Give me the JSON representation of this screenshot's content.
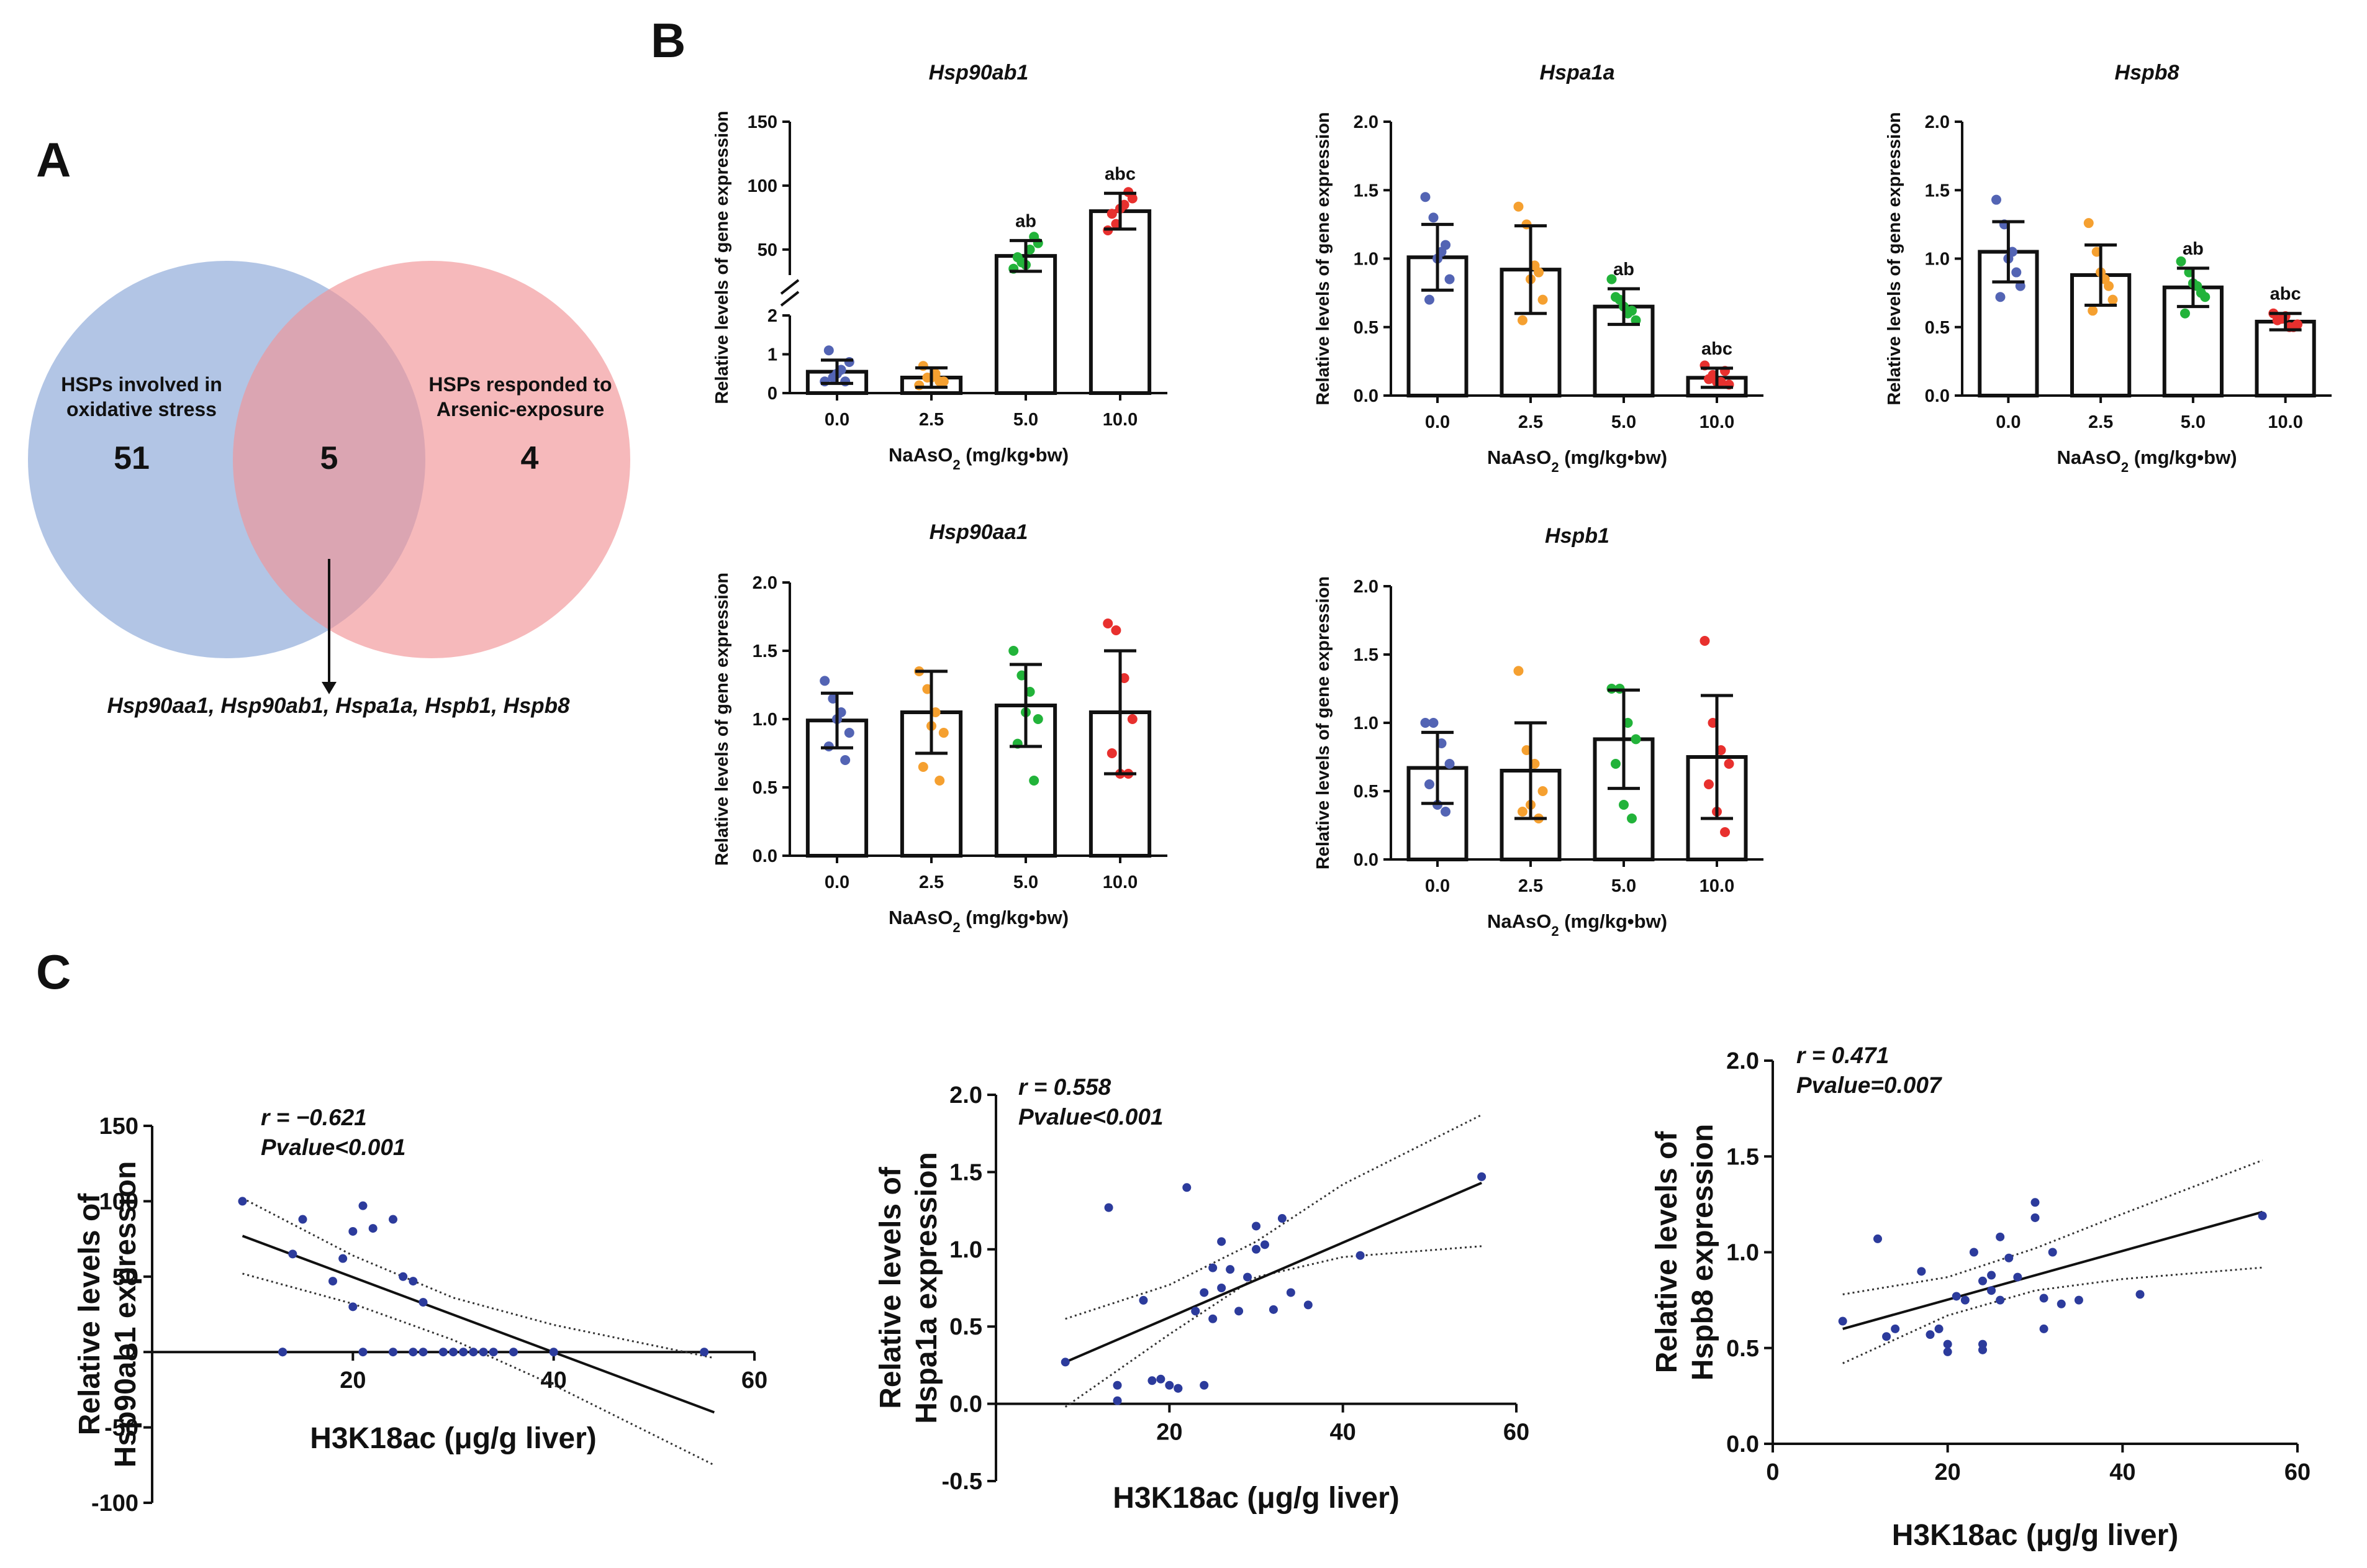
{
  "panel_labels": {
    "a": "A",
    "b": "B",
    "c": "C"
  },
  "colors": {
    "blue": "#5364b4",
    "orange": "#f5a030",
    "green": "#22b33a",
    "red": "#e8302e",
    "venn_left": "#9fb6df",
    "venn_right": "#f4a0a4",
    "dot_c": "#2c3b9c"
  },
  "venn": {
    "left_label_1": "HSPs involved in",
    "left_label_2": "oxidative stress",
    "right_label_1": "HSPs responded to",
    "right_label_2": "Arsenic-exposure",
    "left_count": "51",
    "overlap_count": "5",
    "right_count": "4",
    "genes": "Hsp90aa1, Hsp90ab1, Hspa1a, Hspb1, Hspb8"
  },
  "chart_data": [
    {
      "type": "bar",
      "id": "b1",
      "title": "Hsp90ab1",
      "categories": [
        "0.0",
        "2.5",
        "5.0",
        "10.0"
      ],
      "values": [
        0.55,
        0.4,
        45,
        80
      ],
      "sd": [
        0.3,
        0.25,
        12,
        14
      ],
      "sig": [
        "",
        "",
        "ab",
        "abc"
      ],
      "points": [
        [
          0.3,
          0.4,
          0.6,
          0.8,
          1.1,
          0.5,
          0.3
        ],
        [
          0.2,
          0.4,
          0.5,
          0.3,
          0.7,
          0.4,
          0.3
        ],
        [
          35,
          40,
          50,
          55,
          44,
          38,
          60
        ],
        [
          65,
          70,
          85,
          90,
          78,
          82,
          95
        ]
      ],
      "broken_axis": true,
      "lower_range": [
        0,
        2
      ],
      "lower_ticks": [
        "0",
        "1",
        "2"
      ],
      "upper_range": [
        30,
        150
      ],
      "upper_ticks": [
        "50",
        "100",
        "150"
      ],
      "xlabel": "NaAsO2 (mg/kg•bw)",
      "ylabel": "Relative levels of gene expression"
    },
    {
      "type": "bar",
      "id": "b2",
      "title": "Hspa1a",
      "categories": [
        "0.0",
        "2.5",
        "5.0",
        "10.0"
      ],
      "values": [
        1.01,
        0.92,
        0.65,
        0.13
      ],
      "sd": [
        0.24,
        0.32,
        0.13,
        0.07
      ],
      "sig": [
        "",
        "",
        "ab",
        "abc"
      ],
      "points": [
        [
          1.45,
          1.3,
          1.05,
          0.85,
          0.7,
          1.0,
          1.1
        ],
        [
          1.38,
          1.25,
          0.95,
          0.7,
          0.55,
          0.85,
          0.9
        ],
        [
          0.85,
          0.7,
          0.6,
          0.55,
          0.72,
          0.65,
          0.62
        ],
        [
          0.22,
          0.15,
          0.1,
          0.08,
          0.12,
          0.1,
          0.18
        ]
      ],
      "ylim": [
        0,
        2
      ],
      "yticks": [
        "0.0",
        "0.5",
        "1.0",
        "1.5",
        "2.0"
      ],
      "xlabel": "NaAsO2 (mg/kg•bw)",
      "ylabel": "Relative levels of gene expression"
    },
    {
      "type": "bar",
      "id": "b3",
      "title": "Hspb8",
      "categories": [
        "0.0",
        "2.5",
        "5.0",
        "10.0"
      ],
      "values": [
        1.05,
        0.88,
        0.79,
        0.54
      ],
      "sd": [
        0.22,
        0.22,
        0.14,
        0.06
      ],
      "sig": [
        "",
        "",
        "ab",
        "abc"
      ],
      "points": [
        [
          1.43,
          1.25,
          1.05,
          0.8,
          0.72,
          1.0,
          0.9
        ],
        [
          1.26,
          1.05,
          0.85,
          0.7,
          0.62,
          0.9,
          0.8
        ],
        [
          0.98,
          0.9,
          0.8,
          0.72,
          0.6,
          0.82,
          0.75
        ],
        [
          0.6,
          0.56,
          0.5,
          0.52,
          0.55,
          0.58,
          0.5
        ]
      ],
      "ylim": [
        0,
        2
      ],
      "yticks": [
        "0.0",
        "0.5",
        "1.0",
        "1.5",
        "2.0"
      ],
      "xlabel": "NaAsO2 (mg/kg•bw)",
      "ylabel": "Relative levels of gene expression"
    },
    {
      "type": "bar",
      "id": "b4",
      "title": "Hsp90aa1",
      "categories": [
        "0.0",
        "2.5",
        "5.0",
        "10.0"
      ],
      "values": [
        0.99,
        1.05,
        1.1,
        1.05
      ],
      "sd": [
        0.2,
        0.3,
        0.3,
        0.45
      ],
      "sig": [
        "",
        "",
        "",
        ""
      ],
      "points": [
        [
          1.28,
          1.15,
          1.05,
          0.9,
          0.8,
          1.0,
          0.7
        ],
        [
          1.35,
          1.22,
          1.05,
          0.9,
          0.65,
          0.95,
          0.55
        ],
        [
          1.5,
          1.32,
          1.2,
          1.0,
          0.82,
          1.05,
          0.55
        ],
        [
          1.7,
          1.65,
          1.3,
          1.0,
          0.75,
          0.6,
          0.6
        ]
      ],
      "ylim": [
        0,
        2
      ],
      "yticks": [
        "0.0",
        "0.5",
        "1.0",
        "1.5",
        "2.0"
      ],
      "xlabel": "NaAsO2 (mg/kg•bw)",
      "ylabel": "Relative levels of gene expression"
    },
    {
      "type": "bar",
      "id": "b5",
      "title": "Hspb1",
      "categories": [
        "0.0",
        "2.5",
        "5.0",
        "10.0"
      ],
      "values": [
        0.67,
        0.65,
        0.88,
        0.75
      ],
      "sd": [
        0.26,
        0.35,
        0.36,
        0.45
      ],
      "sig": [
        "",
        "",
        "",
        ""
      ],
      "points": [
        [
          1.0,
          1.0,
          0.85,
          0.7,
          0.55,
          0.4,
          0.35
        ],
        [
          1.38,
          0.8,
          0.7,
          0.5,
          0.35,
          0.4,
          0.3
        ],
        [
          1.25,
          1.25,
          1.0,
          0.88,
          0.7,
          0.4,
          0.3
        ],
        [
          1.6,
          1.0,
          0.8,
          0.7,
          0.55,
          0.35,
          0.2
        ]
      ],
      "ylim": [
        0,
        2
      ],
      "yticks": [
        "0.0",
        "0.5",
        "1.0",
        "1.5",
        "2.0"
      ],
      "xlabel": "NaAsO2 (mg/kg•bw)",
      "ylabel": "Relative levels of gene expression"
    },
    {
      "type": "scatter",
      "id": "c1",
      "xlim": [
        0,
        60
      ],
      "ylim": [
        -100,
        150
      ],
      "xticks": [
        "20",
        "40",
        "60"
      ],
      "yticks": [
        "-100",
        "-50",
        "0",
        "50",
        "100",
        "150"
      ],
      "r": "r = −0.621",
      "p": "Pvalue<0.001",
      "ylabel_1": "Relative levels of",
      "ylabel_2": "Hsp90ab1 expression",
      "xlabel": "H3K18ac (μg/g liver)",
      "x": [
        9,
        13,
        14,
        15,
        18,
        19,
        20,
        21,
        22,
        24,
        25,
        26,
        27,
        13,
        21,
        24,
        26,
        27,
        29,
        30,
        31,
        32,
        33,
        34,
        36,
        40,
        55,
        20
      ],
      "y": [
        100,
        0,
        65,
        88,
        47,
        62,
        80,
        97,
        82,
        88,
        50,
        47,
        33,
        0,
        0,
        0,
        0,
        0,
        0,
        0,
        0,
        0,
        0,
        0,
        0,
        0,
        0,
        30
      ],
      "fit": [
        [
          9,
          77
        ],
        [
          56,
          -40
        ]
      ],
      "ci_upper": [
        [
          9,
          102
        ],
        [
          20,
          64
        ],
        [
          30,
          36
        ],
        [
          40,
          18
        ],
        [
          56,
          -4
        ]
      ],
      "ci_lower": [
        [
          9,
          52
        ],
        [
          20,
          32
        ],
        [
          30,
          8
        ],
        [
          40,
          -22
        ],
        [
          56,
          -75
        ]
      ]
    },
    {
      "type": "scatter",
      "id": "c2",
      "xlim": [
        0,
        60
      ],
      "ylim": [
        -0.5,
        2.0
      ],
      "xticks": [
        "20",
        "40",
        "60"
      ],
      "yticks": [
        "-0.5",
        "0.0",
        "0.5",
        "1.0",
        "1.5",
        "2.0"
      ],
      "r": "r = 0.558",
      "p": "Pvalue<0.001",
      "ylabel_1": "Relative levels of",
      "ylabel_2": "Hspa1a expression",
      "xlabel": "H3K18ac (μg/g liver)",
      "x": [
        8,
        13,
        14,
        14,
        17,
        18,
        19,
        20,
        21,
        22,
        23,
        24,
        24,
        25,
        25,
        26,
        26,
        27,
        28,
        29,
        30,
        30,
        31,
        32,
        33,
        34,
        36,
        42,
        56,
        21
      ],
      "y": [
        0.27,
        1.27,
        0.12,
        0.02,
        0.67,
        0.15,
        0.16,
        0.12,
        0.1,
        1.4,
        0.6,
        0.72,
        0.12,
        0.88,
        0.55,
        0.75,
        1.05,
        0.87,
        0.6,
        0.82,
        1.15,
        1.0,
        1.03,
        0.61,
        1.2,
        0.72,
        0.64,
        0.96,
        1.47,
        0.1
      ],
      "fit": [
        [
          8,
          0.27
        ],
        [
          56,
          1.43
        ]
      ],
      "ci_upper": [
        [
          8,
          0.55
        ],
        [
          20,
          0.77
        ],
        [
          30,
          1.05
        ],
        [
          40,
          1.42
        ],
        [
          56,
          1.87
        ]
      ],
      "ci_lower": [
        [
          8,
          -0.02
        ],
        [
          20,
          0.45
        ],
        [
          30,
          0.82
        ],
        [
          40,
          0.95
        ],
        [
          56,
          1.02
        ]
      ]
    },
    {
      "type": "scatter",
      "id": "c3",
      "xlim": [
        0,
        60
      ],
      "ylim": [
        0,
        2.0
      ],
      "xticks": [
        "0",
        "20",
        "40",
        "60"
      ],
      "yticks": [
        "0.0",
        "0.5",
        "1.0",
        "1.5",
        "2.0"
      ],
      "r": "r = 0.471",
      "p": "Pvalue=0.007",
      "ylabel_1": "Relative levels of",
      "ylabel_2": "Hspb8 expression",
      "xlabel": "H3K18ac (μg/g liver)",
      "x": [
        8,
        12,
        13,
        14,
        17,
        18,
        19,
        20,
        20,
        21,
        22,
        23,
        24,
        24,
        25,
        25,
        26,
        26,
        27,
        28,
        30,
        30,
        31,
        31,
        32,
        33,
        35,
        42,
        56,
        24
      ],
      "y": [
        0.64,
        1.07,
        0.56,
        0.6,
        0.9,
        0.57,
        0.6,
        0.52,
        0.48,
        0.77,
        0.75,
        1.0,
        0.85,
        0.52,
        0.88,
        0.8,
        0.75,
        1.08,
        0.97,
        0.87,
        1.26,
        1.18,
        0.76,
        0.6,
        1.0,
        0.73,
        0.75,
        0.78,
        1.19,
        0.49
      ],
      "fit": [
        [
          8,
          0.6
        ],
        [
          56,
          1.21
        ]
      ],
      "ci_upper": [
        [
          8,
          0.78
        ],
        [
          20,
          0.87
        ],
        [
          30,
          1.02
        ],
        [
          40,
          1.2
        ],
        [
          56,
          1.48
        ]
      ],
      "ci_lower": [
        [
          8,
          0.42
        ],
        [
          20,
          0.67
        ],
        [
          30,
          0.8
        ],
        [
          40,
          0.86
        ],
        [
          56,
          0.92
        ]
      ]
    }
  ]
}
